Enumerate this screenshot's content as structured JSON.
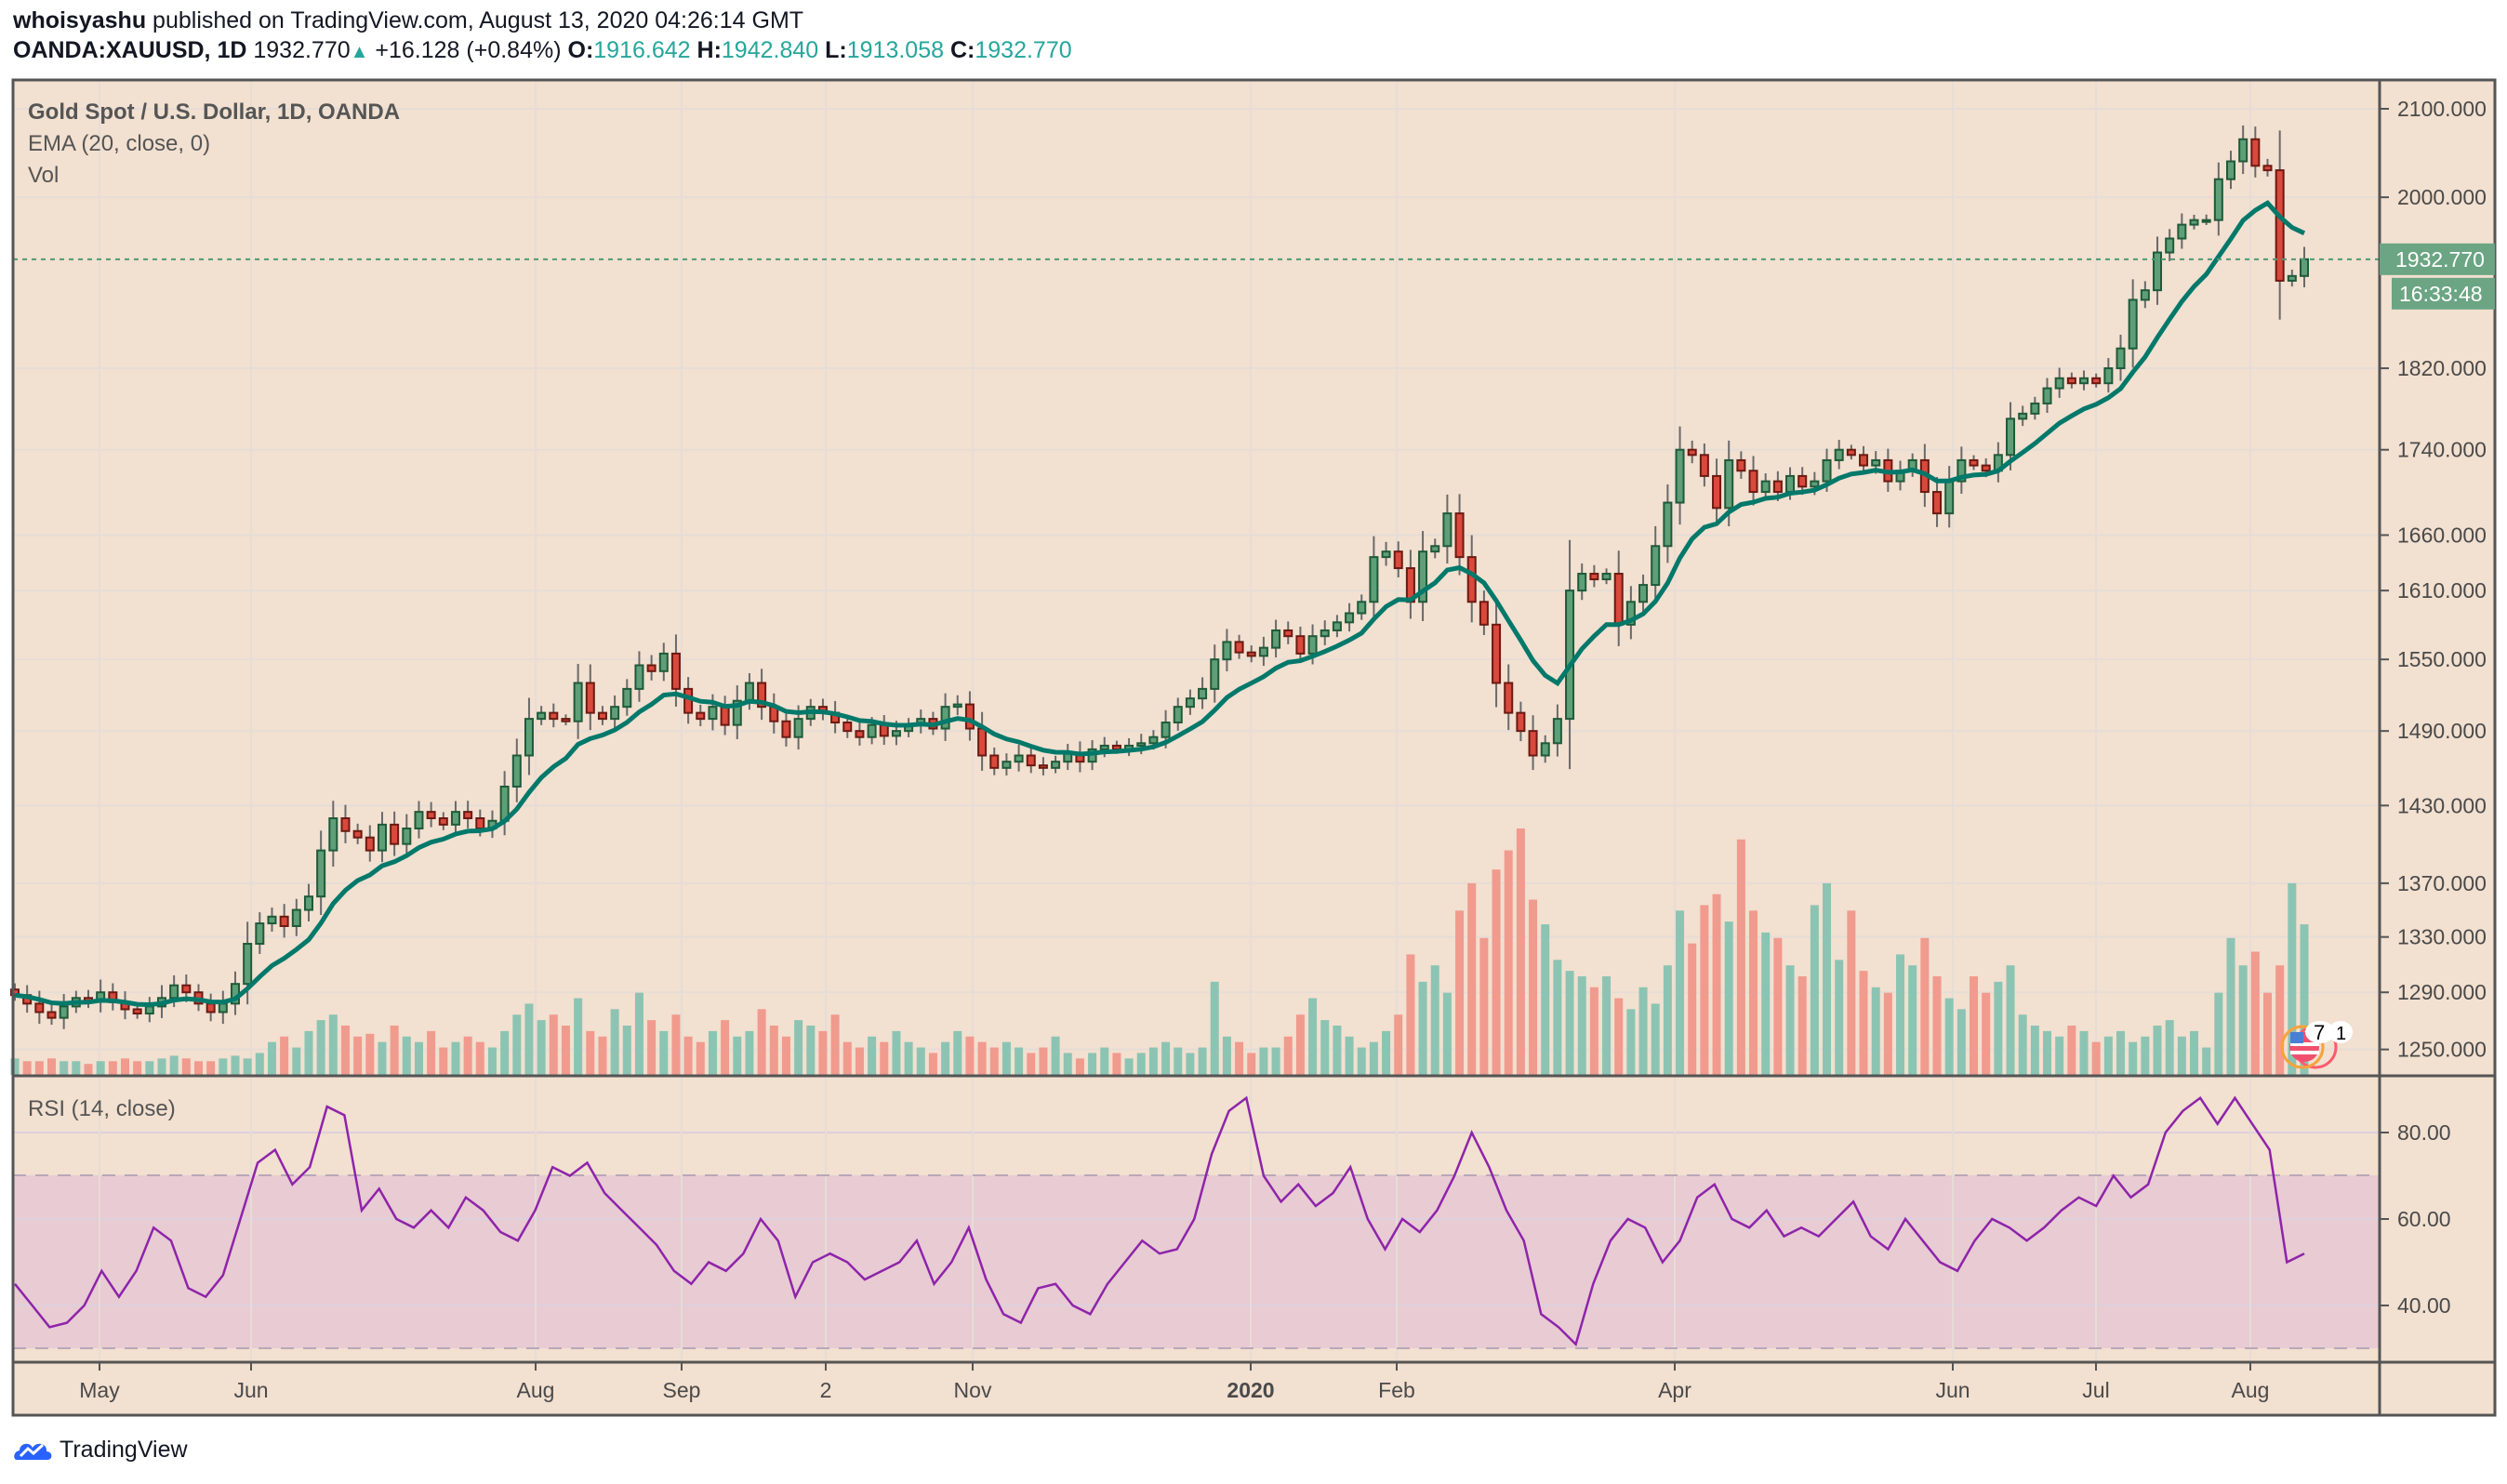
{
  "header": {
    "author": "whoisyashu",
    "published": "published on TradingView.com, August 13, 2020 04:26:14 GMT",
    "symbol": "OANDA:XAUUSD, 1D",
    "last": "1932.770",
    "change": "+16.128 (+0.84%)",
    "o_label": "O:",
    "o": "1916.642",
    "h_label": "H:",
    "h": "1942.840",
    "l_label": "L:",
    "l": "1913.058",
    "c_label": "C:",
    "c": "1932.770"
  },
  "legend": {
    "title": "Gold Spot / U.S. Dollar, 1D, OANDA",
    "ema": "EMA (20, close, 0)",
    "vol": "Vol",
    "rsi": "RSI (14, close)"
  },
  "price_badge": "1932.770",
  "countdown_badge": "16:33:48",
  "event_badge": {
    "count_a": "7",
    "count_b": "1",
    "icon": "us-flag-icon"
  },
  "logo": {
    "text": "TradingView",
    "icon": "tradingview-cloud-icon"
  },
  "colors": {
    "background": "#f2e0d0",
    "up": "#26a69a",
    "down": "#ef5350",
    "ema": "#00796b",
    "rsi": "#7b1fa2",
    "rsi_band": "#e6c8d2",
    "badge": "#6ba583"
  },
  "chart_data": {
    "type": "candlestick",
    "price_scale": "log",
    "y_ticks": [
      "2100.000",
      "2000.000",
      "1820.000",
      "1740.000",
      "1660.000",
      "1610.000",
      "1550.000",
      "1490.000",
      "1430.000",
      "1370.000",
      "1330.000",
      "1290.000",
      "1250.000"
    ],
    "x_ticks": [
      "May",
      "Jun",
      "Aug",
      "Sep",
      "2",
      "Nov",
      "2020",
      "Feb",
      "Apr",
      "Jun",
      "Jul",
      "Aug"
    ],
    "ema_period": 20,
    "close": [
      1288,
      1282,
      1276,
      1272,
      1280,
      1286,
      1284,
      1290,
      1283,
      1278,
      1275,
      1280,
      1286,
      1295,
      1290,
      1282,
      1276,
      1282,
      1296,
      1325,
      1340,
      1345,
      1338,
      1350,
      1360,
      1395,
      1420,
      1410,
      1405,
      1395,
      1415,
      1400,
      1412,
      1425,
      1420,
      1415,
      1425,
      1420,
      1412,
      1418,
      1445,
      1470,
      1500,
      1505,
      1500,
      1498,
      1530,
      1505,
      1500,
      1510,
      1525,
      1545,
      1540,
      1555,
      1525,
      1505,
      1500,
      1510,
      1495,
      1515,
      1530,
      1510,
      1498,
      1485,
      1500,
      1510,
      1505,
      1497,
      1490,
      1485,
      1495,
      1486,
      1490,
      1495,
      1500,
      1492,
      1510,
      1512,
      1492,
      1470,
      1460,
      1465,
      1470,
      1462,
      1460,
      1465,
      1472,
      1465,
      1475,
      1478,
      1475,
      1478,
      1480,
      1485,
      1497,
      1510,
      1517,
      1525,
      1550,
      1565,
      1556,
      1553,
      1560,
      1575,
      1570,
      1555,
      1570,
      1575,
      1582,
      1590,
      1600,
      1640,
      1645,
      1630,
      1600,
      1645,
      1650,
      1680,
      1640,
      1600,
      1580,
      1530,
      1505,
      1490,
      1470,
      1480,
      1500,
      1610,
      1625,
      1620,
      1625,
      1580,
      1600,
      1615,
      1650,
      1690,
      1740,
      1735,
      1715,
      1685,
      1730,
      1720,
      1700,
      1710,
      1700,
      1715,
      1705,
      1710,
      1730,
      1740,
      1735,
      1725,
      1730,
      1710,
      1720,
      1730,
      1700,
      1680,
      1710,
      1730,
      1725,
      1720,
      1735,
      1770,
      1775,
      1785,
      1800,
      1810,
      1805,
      1810,
      1805,
      1820,
      1840,
      1890,
      1900,
      1940,
      1955,
      1970,
      1975,
      1975,
      2020,
      2040,
      2065,
      2035,
      2030,
      1910,
      1915,
      1932.77
    ],
    "volume": [
      6,
      5,
      5,
      6,
      5,
      5,
      4,
      5,
      5,
      6,
      5,
      5,
      6,
      7,
      6,
      5,
      5,
      6,
      7,
      6,
      8,
      12,
      14,
      10,
      16,
      20,
      22,
      18,
      14,
      15,
      12,
      18,
      14,
      12,
      16,
      10,
      12,
      14,
      12,
      10,
      16,
      22,
      26,
      20,
      22,
      18,
      28,
      16,
      14,
      24,
      18,
      30,
      20,
      16,
      22,
      14,
      12,
      16,
      20,
      14,
      16,
      24,
      18,
      14,
      20,
      18,
      16,
      22,
      12,
      10,
      14,
      12,
      16,
      12,
      10,
      8,
      12,
      16,
      14,
      12,
      10,
      12,
      10,
      8,
      10,
      14,
      8,
      6,
      8,
      10,
      8,
      6,
      8,
      10,
      12,
      10,
      8,
      10,
      34,
      14,
      12,
      8,
      10,
      10,
      14,
      22,
      28,
      20,
      18,
      14,
      10,
      12,
      16,
      22,
      44,
      34,
      40,
      30,
      60,
      70,
      50,
      75,
      82,
      90,
      64,
      55,
      42,
      38,
      36,
      32,
      36,
      28,
      24,
      32,
      26,
      40,
      60,
      48,
      62,
      66,
      56,
      86,
      60,
      52,
      50,
      40,
      36,
      62,
      70,
      42,
      60,
      38,
      32,
      30,
      44,
      40,
      50,
      36,
      28,
      24,
      36,
      30,
      34,
      40,
      22,
      18,
      16,
      14,
      18,
      16,
      12,
      14,
      16,
      12,
      14,
      18,
      20,
      14,
      16,
      10,
      30,
      50,
      40,
      45,
      30,
      40,
      70,
      55
    ],
    "rsi": {
      "ylim": [
        25,
        92
      ],
      "y_ticks": [
        "80.00",
        "60.00",
        "40.00"
      ],
      "bands": [
        70,
        30
      ],
      "values": [
        45,
        40,
        35,
        36,
        40,
        48,
        42,
        48,
        58,
        55,
        44,
        42,
        47,
        60,
        73,
        76,
        68,
        72,
        86,
        84,
        62,
        67,
        60,
        58,
        62,
        58,
        65,
        62,
        57,
        55,
        62,
        72,
        70,
        73,
        66,
        62,
        58,
        54,
        48,
        45,
        50,
        48,
        52,
        60,
        55,
        42,
        50,
        52,
        50,
        46,
        48,
        50,
        55,
        45,
        50,
        58,
        46,
        38,
        36,
        44,
        45,
        40,
        38,
        45,
        50,
        55,
        52,
        53,
        60,
        75,
        85,
        88,
        70,
        64,
        68,
        63,
        66,
        72,
        60,
        53,
        60,
        57,
        62,
        70,
        80,
        72,
        62,
        55,
        38,
        35,
        31,
        45,
        55,
        60,
        58,
        50,
        55,
        65,
        68,
        60,
        58,
        62,
        56,
        58,
        56,
        60,
        64,
        56,
        53,
        60,
        55,
        50,
        48,
        55,
        60,
        58,
        55,
        58,
        62,
        65,
        63,
        70,
        65,
        68,
        80,
        85,
        88,
        82,
        88,
        82,
        76,
        50,
        52
      ]
    }
  }
}
